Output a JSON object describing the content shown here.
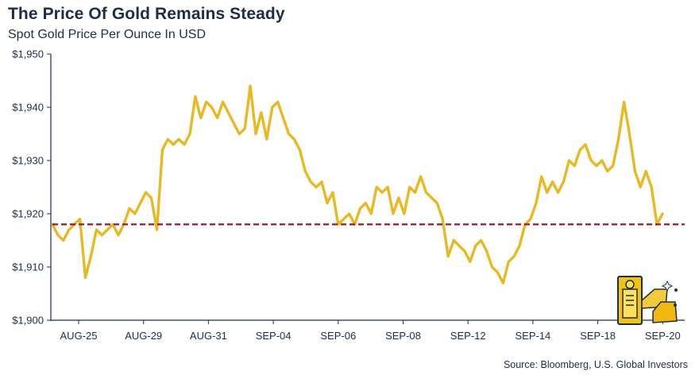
{
  "title": "The Price Of Gold Remains Steady",
  "subtitle": "Spot Gold Price Per Ounce In USD",
  "source": "Source: Bloomberg, U.S. Global Investors",
  "colors": {
    "line": "#e8b923",
    "reference": "#a3122a",
    "text": "#1c2f4a",
    "axis": "#1c2f4a"
  },
  "illustration": {
    "icon": "gold-bars-icon"
  },
  "chart_data": {
    "type": "line",
    "xlabel": "",
    "ylabel": "",
    "y_ticks": [
      1900,
      1910,
      1920,
      1930,
      1940,
      1950
    ],
    "y_tick_labels": [
      "$1,900",
      "$1,910",
      "$1,920",
      "$1,930",
      "$1,940",
      "$1,950"
    ],
    "ylim": [
      1900,
      1950
    ],
    "x_ticks": [
      "AUG-25",
      "AUG-29",
      "AUG-31",
      "SEP-04",
      "SEP-06",
      "SEP-08",
      "SEP-12",
      "SEP-14",
      "SEP-18",
      "SEP-20"
    ],
    "reference_line": {
      "value": 1918
    },
    "grid": false,
    "series": [
      {
        "values": [
          1918,
          1916,
          1915,
          1917,
          1918,
          1919,
          1908,
          1912,
          1917,
          1916,
          1917,
          1918,
          1916,
          1918,
          1921,
          1920,
          1922,
          1924,
          1923,
          1917,
          1932,
          1934,
          1933,
          1934,
          1933,
          1935,
          1942,
          1938,
          1941,
          1940,
          1938,
          1941,
          1939,
          1937,
          1935,
          1936,
          1944,
          1935,
          1939,
          1934,
          1940,
          1941,
          1938,
          1935,
          1934,
          1932,
          1928,
          1926,
          1925,
          1926,
          1922,
          1924,
          1918,
          1919,
          1920,
          1918,
          1921,
          1922,
          1920,
          1925,
          1924,
          1925,
          1920,
          1923,
          1920,
          1925,
          1924,
          1927,
          1924,
          1923,
          1922,
          1919,
          1912,
          1915,
          1914,
          1913,
          1911,
          1914,
          1915,
          1913,
          1910,
          1909,
          1907,
          1911,
          1912,
          1914,
          1918,
          1919,
          1922,
          1927,
          1924,
          1926,
          1924,
          1926,
          1930,
          1929,
          1932,
          1933,
          1930,
          1929,
          1930,
          1928,
          1929,
          1934,
          1941,
          1935,
          1928,
          1925,
          1928,
          1925,
          1918,
          1920
        ]
      }
    ]
  }
}
